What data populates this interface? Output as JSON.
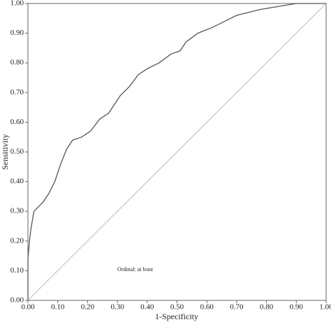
{
  "chart_data": {
    "type": "line",
    "xlabel": "1-Specificity",
    "ylabel": "Sensitivity",
    "annotation": "Ordinal: at least",
    "xlim": [
      0,
      1
    ],
    "ylim": [
      0,
      1
    ],
    "xticks": [
      {
        "value": 0,
        "label": "0.00"
      },
      {
        "value": 0.1,
        "label": "0.10"
      },
      {
        "value": 0.2,
        "label": "0.20"
      },
      {
        "value": 0.3,
        "label": "0.30"
      },
      {
        "value": 0.4,
        "label": "0.40"
      },
      {
        "value": 0.5,
        "label": "0.50"
      },
      {
        "value": 0.6,
        "label": "0.60"
      },
      {
        "value": 0.7,
        "label": "0.70"
      },
      {
        "value": 0.8,
        "label": "0.80"
      },
      {
        "value": 0.9,
        "label": "0.90"
      },
      {
        "value": 1,
        "label": "1.00"
      }
    ],
    "yticks": [
      {
        "value": 0,
        "label": "0.00"
      },
      {
        "value": 0.1,
        "label": "0.10"
      },
      {
        "value": 0.2,
        "label": "0.20"
      },
      {
        "value": 0.3,
        "label": "0.30"
      },
      {
        "value": 0.4,
        "label": "0.40"
      },
      {
        "value": 0.5,
        "label": "0.50"
      },
      {
        "value": 0.6,
        "label": "0.60"
      },
      {
        "value": 0.7,
        "label": "0.70"
      },
      {
        "value": 0.8,
        "label": "0.80"
      },
      {
        "value": 0.9,
        "label": "0.90"
      },
      {
        "value": 1,
        "label": "1.00"
      }
    ],
    "series": [
      {
        "color": "#555555",
        "x": [
          0,
          0,
          0.005,
          0.01,
          0.02,
          0.03,
          0.05,
          0.07,
          0.09,
          0.11,
          0.13,
          0.15,
          0.18,
          0.21,
          0.24,
          0.27,
          0.29,
          0.31,
          0.34,
          0.37,
          0.4,
          0.44,
          0.48,
          0.51,
          0.53,
          0.57,
          0.62,
          0.66,
          0.7,
          0.74,
          0.78,
          0.84,
          0.9,
          1
        ],
        "values": [
          0,
          0.14,
          0.2,
          0.24,
          0.3,
          0.31,
          0.33,
          0.36,
          0.4,
          0.46,
          0.51,
          0.54,
          0.55,
          0.57,
          0.61,
          0.63,
          0.66,
          0.69,
          0.72,
          0.76,
          0.78,
          0.8,
          0.83,
          0.84,
          0.87,
          0.9,
          0.92,
          0.94,
          0.96,
          0.97,
          0.98,
          0.99,
          1,
          1
        ]
      },
      {
        "color": "#aaaaaa",
        "x": [
          0,
          1
        ],
        "values": [
          0,
          1
        ]
      }
    ]
  }
}
